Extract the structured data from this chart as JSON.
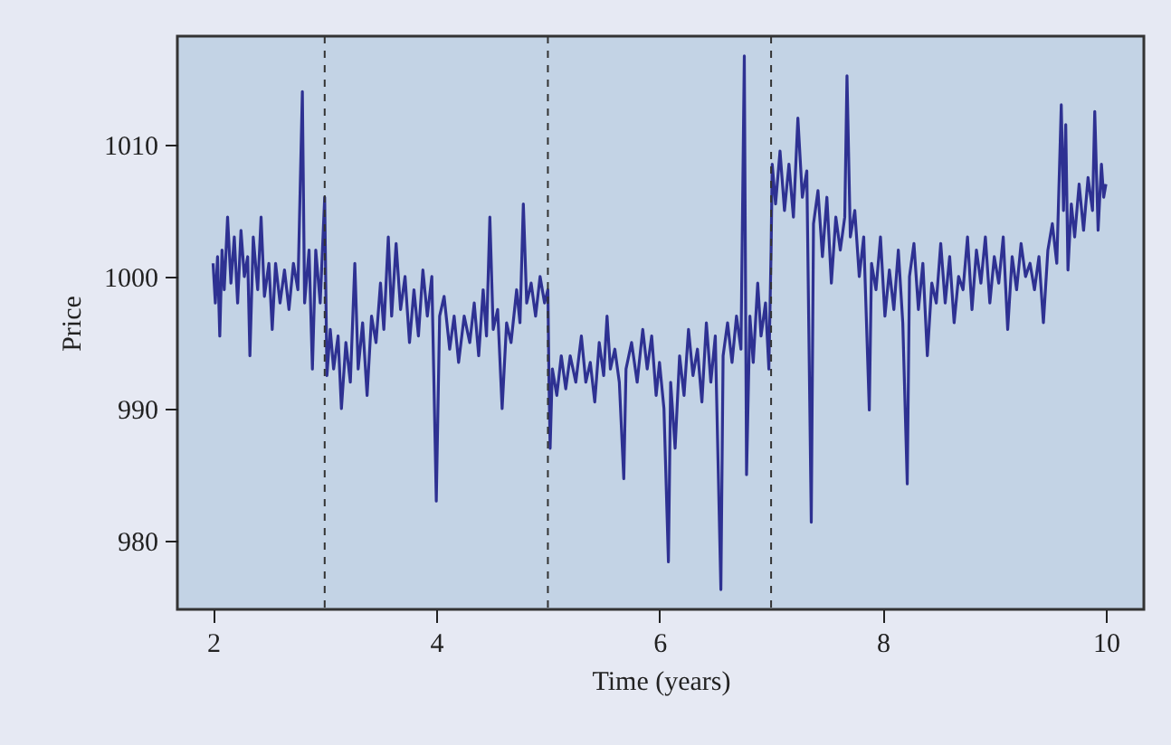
{
  "chart_data": {
    "type": "line",
    "xlabel": "Time (years)",
    "ylabel": "Price",
    "x": [
      2.0,
      2.02,
      2.04,
      2.06,
      2.08,
      2.1,
      2.13,
      2.16,
      2.19,
      2.22,
      2.25,
      2.28,
      2.31,
      2.33,
      2.36,
      2.4,
      2.43,
      2.46,
      2.5,
      2.53,
      2.56,
      2.6,
      2.64,
      2.68,
      2.72,
      2.76,
      2.8,
      2.82,
      2.86,
      2.89,
      2.92,
      2.96,
      3.0,
      3.02,
      3.05,
      3.08,
      3.12,
      3.15,
      3.19,
      3.23,
      3.27,
      3.3,
      3.34,
      3.38,
      3.42,
      3.46,
      3.5,
      3.53,
      3.57,
      3.6,
      3.64,
      3.68,
      3.72,
      3.76,
      3.8,
      3.84,
      3.88,
      3.92,
      3.96,
      4.0,
      4.03,
      4.07,
      4.12,
      4.16,
      4.2,
      4.25,
      4.3,
      4.34,
      4.38,
      4.42,
      4.45,
      4.48,
      4.51,
      4.55,
      4.59,
      4.63,
      4.67,
      4.72,
      4.75,
      4.78,
      4.81,
      4.85,
      4.89,
      4.93,
      4.97,
      5.0,
      5.01,
      5.02,
      5.04,
      5.08,
      5.12,
      5.16,
      5.2,
      5.25,
      5.3,
      5.34,
      5.38,
      5.42,
      5.46,
      5.5,
      5.53,
      5.56,
      5.6,
      5.64,
      5.68,
      5.7,
      5.75,
      5.8,
      5.85,
      5.89,
      5.93,
      5.97,
      6.0,
      6.04,
      6.08,
      6.1,
      6.14,
      6.18,
      6.22,
      6.26,
      6.3,
      6.34,
      6.38,
      6.42,
      6.46,
      6.5,
      6.55,
      6.57,
      6.61,
      6.65,
      6.69,
      6.73,
      6.76,
      6.78,
      6.81,
      6.84,
      6.88,
      6.91,
      6.95,
      6.98,
      7.0,
      7.01,
      7.04,
      7.08,
      7.12,
      7.16,
      7.2,
      7.24,
      7.28,
      7.32,
      7.36,
      7.38,
      7.42,
      7.46,
      7.5,
      7.54,
      7.58,
      7.62,
      7.66,
      7.68,
      7.71,
      7.75,
      7.79,
      7.83,
      7.88,
      7.9,
      7.94,
      7.98,
      8.02,
      8.06,
      8.1,
      8.14,
      8.18,
      8.22,
      8.24,
      8.28,
      8.32,
      8.36,
      8.4,
      8.44,
      8.48,
      8.52,
      8.56,
      8.6,
      8.64,
      8.68,
      8.72,
      8.76,
      8.8,
      8.84,
      8.88,
      8.92,
      8.96,
      9.0,
      9.04,
      9.08,
      9.12,
      9.16,
      9.2,
      9.24,
      9.28,
      9.32,
      9.36,
      9.4,
      9.44,
      9.48,
      9.52,
      9.56,
      9.6,
      9.62,
      9.64,
      9.66,
      9.69,
      9.72,
      9.76,
      9.8,
      9.84,
      9.88,
      9.9,
      9.93,
      9.96,
      9.98,
      10.0
    ],
    "series": [
      {
        "color": "#2e3192",
        "values": [
          1001,
          998,
          1001.5,
          995.5,
          1002,
          999,
          1004.5,
          999.5,
          1003,
          998,
          1003.5,
          1000,
          1001.5,
          994,
          1003,
          999,
          1004.5,
          998.5,
          1001,
          996,
          1001,
          998,
          1000.5,
          997.5,
          1001,
          999,
          1014,
          998,
          1002,
          993,
          1002,
          998,
          1006,
          992.5,
          996,
          993,
          995.5,
          990,
          995,
          992,
          1001,
          993,
          996.5,
          991,
          997,
          995,
          999.5,
          996,
          1003,
          997,
          1002.5,
          997.5,
          1000,
          995,
          999,
          995.5,
          1000.5,
          997,
          1000,
          983,
          997,
          998.5,
          994.5,
          997,
          993.5,
          997,
          995,
          998,
          994,
          999,
          995.5,
          1004.5,
          996,
          997.5,
          990,
          996.5,
          995,
          999,
          996.5,
          1005.5,
          998,
          999.5,
          997,
          1000,
          998,
          999,
          992,
          987,
          993,
          991,
          994,
          991.5,
          994,
          992,
          995.5,
          992,
          993.5,
          990.5,
          995,
          992.5,
          997,
          993,
          994.5,
          992,
          984.7,
          993,
          995,
          992,
          996,
          993,
          995.5,
          991,
          993.5,
          990,
          978.4,
          992,
          987,
          994,
          991,
          996,
          992.5,
          994.5,
          990.5,
          996.5,
          992,
          995.5,
          976.3,
          994,
          996.5,
          993.5,
          997,
          994.5,
          1016.7,
          985,
          997,
          993.5,
          999.5,
          995.5,
          998,
          993,
          1002,
          1008.5,
          1005.5,
          1009.5,
          1005,
          1008.5,
          1004.5,
          1012,
          1006,
          1008,
          981.4,
          1004,
          1006.5,
          1001.5,
          1006,
          999.5,
          1004.5,
          1002,
          1004.5,
          1015.2,
          1003,
          1005,
          1000,
          1003,
          989.9,
          1001,
          999,
          1003,
          997,
          1000.5,
          997.5,
          1002,
          996.5,
          984.3,
          1000,
          1002.5,
          997.5,
          1001,
          994,
          999.5,
          998,
          1002.5,
          998,
          1001.5,
          996.5,
          1000,
          999,
          1003,
          997.5,
          1002,
          999.5,
          1003,
          998,
          1001.5,
          999.5,
          1003,
          996,
          1001.5,
          999,
          1002.5,
          1000,
          1001,
          999,
          1001.5,
          996.5,
          1002,
          1004,
          1001,
          1013,
          1005,
          1011.5,
          1000.5,
          1005.5,
          1003,
          1007,
          1003.5,
          1007.5,
          1005,
          1012.5,
          1003.5,
          1008.5,
          1006,
          1007
        ]
      }
    ],
    "xlim": [
      1.68,
      10.34
    ],
    "ylim": [
      974.8,
      1018.2
    ],
    "xticks": [
      2,
      4,
      6,
      8,
      10
    ],
    "yticks": [
      980,
      990,
      1000,
      1010
    ],
    "ref_lines": [
      {
        "axis": "x",
        "value": 3,
        "color": "#333333",
        "line_style": "dashed"
      },
      {
        "axis": "x",
        "value": 5,
        "color": "#333333",
        "line_style": "dashed"
      },
      {
        "axis": "x",
        "value": 7,
        "color": "#333333",
        "line_style": "dashed"
      }
    ],
    "grid": false,
    "line_style": "solid",
    "marker": "none"
  }
}
